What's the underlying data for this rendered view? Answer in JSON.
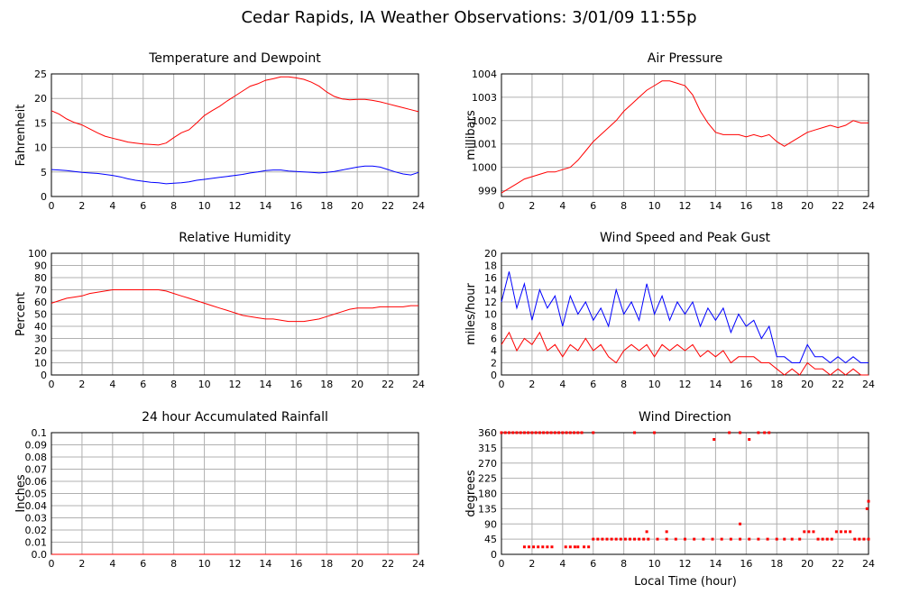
{
  "title": "Cedar Rapids, IA Weather Observations: 3/01/09 11:55p",
  "xlabel_common": "Local Time (hour)",
  "chart_data": [
    {
      "id": "temp",
      "type": "line",
      "title": "Temperature and Dewpoint",
      "ylabel": "Fahrenheit",
      "xlim": [
        0,
        24
      ],
      "ylim": [
        0,
        25
      ],
      "xticks": [
        0,
        2,
        4,
        6,
        8,
        10,
        12,
        14,
        16,
        18,
        20,
        22,
        24
      ],
      "yticks": [
        0,
        5,
        10,
        15,
        20,
        25
      ],
      "ytick_labels": [
        "0",
        "5",
        "10",
        "15",
        "20",
        "25"
      ],
      "grid": true,
      "series": [
        {
          "color": "#ff0000",
          "x": [
            0,
            0.5,
            1,
            1.5,
            2,
            2.5,
            3,
            3.5,
            4,
            4.5,
            5,
            5.5,
            6,
            6.5,
            7,
            7.5,
            8,
            8.5,
            9,
            9.5,
            10,
            10.5,
            11,
            11.5,
            12,
            12.5,
            13,
            13.5,
            14,
            14.5,
            15,
            15.5,
            16,
            16.5,
            17,
            17.5,
            18,
            18.5,
            19,
            19.5,
            20,
            20.5,
            21,
            21.5,
            22,
            22.5,
            23,
            23.5,
            24
          ],
          "y": [
            17.5,
            16.8,
            15.8,
            15.1,
            14.6,
            13.8,
            13.0,
            12.3,
            11.9,
            11.5,
            11.1,
            10.9,
            10.7,
            10.6,
            10.5,
            10.9,
            12.0,
            13.0,
            13.6,
            15.0,
            16.5,
            17.5,
            18.4,
            19.5,
            20.5,
            21.5,
            22.5,
            23.0,
            23.7,
            24.0,
            24.4,
            24.4,
            24.2,
            23.9,
            23.3,
            22.5,
            21.3,
            20.4,
            19.9,
            19.7,
            19.8,
            19.8,
            19.6,
            19.3,
            18.9,
            18.5,
            18.1,
            17.7,
            17.3
          ]
        },
        {
          "color": "#0000ff",
          "x": [
            0,
            0.5,
            1,
            1.5,
            2,
            2.5,
            3,
            3.5,
            4,
            4.5,
            5,
            5.5,
            6,
            6.5,
            7,
            7.5,
            8,
            8.5,
            9,
            9.5,
            10,
            10.5,
            11,
            11.5,
            12,
            12.5,
            13,
            13.5,
            14,
            14.5,
            15,
            15.5,
            16,
            16.5,
            17,
            17.5,
            18,
            18.5,
            19,
            19.5,
            20,
            20.5,
            21,
            21.5,
            22,
            22.5,
            23,
            23.5,
            24
          ],
          "y": [
            5.5,
            5.4,
            5.3,
            5.1,
            4.9,
            4.8,
            4.7,
            4.5,
            4.3,
            4.0,
            3.6,
            3.3,
            3.1,
            2.9,
            2.8,
            2.6,
            2.7,
            2.8,
            3.0,
            3.3,
            3.5,
            3.7,
            3.9,
            4.1,
            4.3,
            4.5,
            4.8,
            5.0,
            5.3,
            5.4,
            5.4,
            5.2,
            5.1,
            5.0,
            4.9,
            4.8,
            4.9,
            5.1,
            5.4,
            5.7,
            6.0,
            6.2,
            6.2,
            6.0,
            5.5,
            5.0,
            4.6,
            4.4,
            4.9
          ]
        }
      ]
    },
    {
      "id": "pressure",
      "type": "line",
      "title": "Air Pressure",
      "ylabel": "millibars",
      "xlim": [
        0,
        24
      ],
      "ylim": [
        998.75,
        1004
      ],
      "xticks": [
        0,
        2,
        4,
        6,
        8,
        10,
        12,
        14,
        16,
        18,
        20,
        22,
        24
      ],
      "yticks": [
        999,
        1000,
        1001,
        1002,
        1003,
        1004
      ],
      "ytick_labels": [
        "999",
        "1000",
        "1001",
        "1002",
        "1003",
        "1004"
      ],
      "grid": true,
      "series": [
        {
          "color": "#ff0000",
          "x": [
            0,
            0.5,
            1,
            1.5,
            2,
            2.5,
            3,
            3.5,
            4,
            4.5,
            5,
            5.5,
            6,
            6.5,
            7,
            7.5,
            8,
            8.5,
            9,
            9.5,
            10,
            10.5,
            11,
            11.5,
            12,
            12.5,
            13,
            13.5,
            14,
            14.5,
            15,
            15.5,
            16,
            16.5,
            17,
            17.5,
            18,
            18.5,
            19,
            19.5,
            20,
            20.5,
            21,
            21.5,
            22,
            22.5,
            23,
            23.5,
            24
          ],
          "y": [
            998.9,
            999.1,
            999.3,
            999.5,
            999.6,
            999.7,
            999.8,
            999.8,
            999.9,
            1000.0,
            1000.3,
            1000.7,
            1001.1,
            1001.4,
            1001.7,
            1002.0,
            1002.4,
            1002.7,
            1003.0,
            1003.3,
            1003.5,
            1003.7,
            1003.7,
            1003.6,
            1003.5,
            1003.1,
            1002.4,
            1001.9,
            1001.5,
            1001.4,
            1001.4,
            1001.4,
            1001.3,
            1001.4,
            1001.3,
            1001.4,
            1001.1,
            1000.9,
            1001.1,
            1001.3,
            1001.5,
            1001.6,
            1001.7,
            1001.8,
            1001.7,
            1001.8,
            1002.0,
            1001.9,
            1001.9
          ]
        }
      ]
    },
    {
      "id": "humidity",
      "type": "line",
      "title": "Relative Humidity",
      "ylabel": "Percent",
      "xlim": [
        0,
        24
      ],
      "ylim": [
        0,
        100
      ],
      "xticks": [
        0,
        2,
        4,
        6,
        8,
        10,
        12,
        14,
        16,
        18,
        20,
        22,
        24
      ],
      "yticks": [
        0,
        10,
        20,
        30,
        40,
        50,
        60,
        70,
        80,
        90,
        100
      ],
      "ytick_labels": [
        "0",
        "10",
        "20",
        "30",
        "40",
        "50",
        "60",
        "70",
        "80",
        "90",
        "100"
      ],
      "grid": true,
      "series": [
        {
          "color": "#ff0000",
          "x": [
            0,
            0.5,
            1,
            1.5,
            2,
            2.5,
            3,
            3.5,
            4,
            4.5,
            5,
            5.5,
            6,
            6.5,
            7,
            7.5,
            8,
            8.5,
            9,
            9.5,
            10,
            10.5,
            11,
            11.5,
            12,
            12.5,
            13,
            13.5,
            14,
            14.5,
            15,
            15.5,
            16,
            16.5,
            17,
            17.5,
            18,
            18.5,
            19,
            19.5,
            20,
            20.5,
            21,
            21.5,
            22,
            22.5,
            23,
            23.5,
            24
          ],
          "y": [
            59,
            61,
            63,
            64,
            65,
            67,
            68,
            69,
            70,
            70,
            70,
            70,
            70,
            70,
            70,
            69,
            67,
            65,
            63,
            61,
            59,
            57,
            55,
            53,
            51,
            49,
            48,
            47,
            46,
            46,
            45,
            44,
            44,
            44,
            45,
            46,
            48,
            50,
            52,
            54,
            55,
            55,
            55,
            56,
            56,
            56,
            56,
            57,
            57
          ]
        }
      ]
    },
    {
      "id": "wind",
      "type": "line",
      "title": "Wind Speed and Peak Gust",
      "ylabel": "miles/hour",
      "xlim": [
        0,
        24
      ],
      "ylim": [
        0,
        20
      ],
      "xticks": [
        0,
        2,
        4,
        6,
        8,
        10,
        12,
        14,
        16,
        18,
        20,
        22,
        24
      ],
      "yticks": [
        0,
        2,
        4,
        6,
        8,
        10,
        12,
        14,
        16,
        18,
        20
      ],
      "ytick_labels": [
        "0",
        "2",
        "4",
        "6",
        "8",
        "10",
        "12",
        "14",
        "16",
        "18",
        "20"
      ],
      "grid": true,
      "series": [
        {
          "color": "#0000ff",
          "x": [
            0,
            0.5,
            1,
            1.5,
            2,
            2.5,
            3,
            3.5,
            4,
            4.5,
            5,
            5.5,
            6,
            6.5,
            7,
            7.5,
            8,
            8.5,
            9,
            9.5,
            10,
            10.5,
            11,
            11.5,
            12,
            12.5,
            13,
            13.5,
            14,
            14.5,
            15,
            15.5,
            16,
            16.5,
            17,
            17.5,
            18,
            18.5,
            19,
            19.5,
            20,
            20.5,
            21,
            21.5,
            22,
            22.5,
            23,
            23.5,
            24
          ],
          "y": [
            12,
            17,
            11,
            15,
            9,
            14,
            11,
            13,
            8,
            13,
            10,
            12,
            9,
            11,
            8,
            14,
            10,
            12,
            9,
            15,
            10,
            13,
            9,
            12,
            10,
            12,
            8,
            11,
            9,
            11,
            7,
            10,
            8,
            9,
            6,
            8,
            3,
            3,
            2,
            2,
            5,
            3,
            3,
            2,
            3,
            2,
            3,
            2,
            2
          ]
        },
        {
          "color": "#ff0000",
          "x": [
            0,
            0.5,
            1,
            1.5,
            2,
            2.5,
            3,
            3.5,
            4,
            4.5,
            5,
            5.5,
            6,
            6.5,
            7,
            7.5,
            8,
            8.5,
            9,
            9.5,
            10,
            10.5,
            11,
            11.5,
            12,
            12.5,
            13,
            13.5,
            14,
            14.5,
            15,
            15.5,
            16,
            16.5,
            17,
            17.5,
            18,
            18.5,
            19,
            19.5,
            20,
            20.5,
            21,
            21.5,
            22,
            22.5,
            23,
            23.5,
            24
          ],
          "y": [
            5,
            7,
            4,
            6,
            5,
            7,
            4,
            5,
            3,
            5,
            4,
            6,
            4,
            5,
            3,
            2,
            4,
            5,
            4,
            5,
            3,
            5,
            4,
            5,
            4,
            5,
            3,
            4,
            3,
            4,
            2,
            3,
            3,
            3,
            2,
            2,
            1,
            0,
            1,
            0,
            2,
            1,
            1,
            0,
            1,
            0,
            1,
            0,
            0
          ]
        }
      ]
    },
    {
      "id": "rain",
      "type": "line",
      "title": "24 hour Accumulated Rainfall",
      "ylabel": "Inches",
      "xlim": [
        0,
        24
      ],
      "ylim": [
        0,
        0.1
      ],
      "xticks": [
        0,
        2,
        4,
        6,
        8,
        10,
        12,
        14,
        16,
        18,
        20,
        22,
        24
      ],
      "yticks": [
        0,
        0.01,
        0.02,
        0.03,
        0.04,
        0.05,
        0.06,
        0.07,
        0.08,
        0.09,
        0.1
      ],
      "ytick_labels": [
        "0.0",
        "0.01",
        "0.02",
        "0.03",
        "0.04",
        "0.05",
        "0.06",
        "0.07",
        "0.08",
        "0.09",
        "0.1"
      ],
      "grid": true,
      "series": [
        {
          "color": "#ff0000",
          "x": [
            0,
            24
          ],
          "y": [
            0,
            0
          ]
        }
      ]
    },
    {
      "id": "direction",
      "type": "scatter",
      "title": "Wind Direction",
      "ylabel": "degrees",
      "xlim": [
        0,
        24
      ],
      "ylim": [
        0,
        360
      ],
      "xticks": [
        0,
        2,
        4,
        6,
        8,
        10,
        12,
        14,
        16,
        18,
        20,
        22,
        24
      ],
      "yticks": [
        0,
        45,
        90,
        135,
        180,
        225,
        270,
        315,
        360
      ],
      "ytick_labels": [
        "0",
        "45",
        "90",
        "135",
        "180",
        "225",
        "270",
        "315",
        "360"
      ],
      "grid": true,
      "series": [
        {
          "color": "#ff0000",
          "x": [
            0,
            0.25,
            0.5,
            0.75,
            1,
            1.25,
            1.5,
            1.75,
            2,
            2.25,
            2.5,
            2.75,
            3,
            3.25,
            3.5,
            3.75,
            4,
            4.25,
            4.5,
            4.75,
            5,
            5.25,
            1.5,
            1.8,
            2.1,
            2.4,
            2.7,
            3.0,
            3.3,
            4.2,
            4.5,
            4.8,
            5.0,
            5.4,
            5.7,
            6.0,
            6.3,
            6.6,
            6.9,
            7.2,
            7.5,
            7.8,
            8.1,
            8.4,
            8.7,
            9.0,
            9.3,
            9.6,
            10.2,
            10.8,
            11.4,
            12.0,
            12.6,
            13.2,
            13.8,
            14.4,
            15.0,
            15.6,
            16.2,
            16.8,
            17.4,
            18.0,
            18.5,
            19.0,
            19.5,
            19.8,
            20.1,
            20.4,
            20.7,
            21.0,
            21.3,
            21.6,
            21.9,
            22.2,
            22.5,
            22.8,
            23.1,
            23.4,
            23.7,
            24.0,
            6.0,
            8.7,
            10.0,
            13.9,
            14.9,
            15.6,
            16.2,
            16.8,
            17.2,
            17.5,
            23.9,
            9.5,
            10.8,
            15.6,
            24.0
          ],
          "y": [
            360,
            360,
            360,
            360,
            360,
            360,
            360,
            360,
            360,
            360,
            360,
            360,
            360,
            360,
            360,
            360,
            360,
            360,
            360,
            360,
            360,
            360,
            22,
            22,
            22,
            22,
            22,
            22,
            22,
            22,
            22,
            22,
            22,
            22,
            22,
            45,
            45,
            45,
            45,
            45,
            45,
            45,
            45,
            45,
            45,
            45,
            45,
            45,
            45,
            45,
            45,
            45,
            45,
            45,
            45,
            45,
            45,
            45,
            45,
            45,
            45,
            45,
            45,
            45,
            45,
            67,
            67,
            67,
            45,
            45,
            45,
            45,
            67,
            67,
            67,
            67,
            45,
            45,
            45,
            45,
            360,
            360,
            360,
            340,
            360,
            360,
            340,
            360,
            360,
            360,
            135,
            67,
            67,
            90,
            157
          ]
        }
      ]
    }
  ]
}
